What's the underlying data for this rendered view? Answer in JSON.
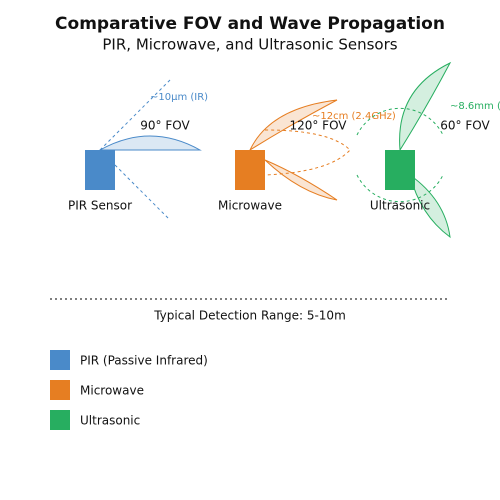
{
  "title": "Comparative FOV and Wave Propagation",
  "subtitle": "PIR, Microwave, and Ultrasonic Sensors",
  "sensors": [
    {
      "label": "PIR Sensor",
      "fov_label": "90° FOV",
      "wave_label": "~10μm (IR)",
      "color": "#4a8ac9"
    },
    {
      "label": "Microwave",
      "fov_label": "120° FOV",
      "wave_label": "~12cm (2.4GHz)",
      "color": "#e67e22"
    },
    {
      "label": "Ultrasonic",
      "fov_label": "60° FOV",
      "wave_label": "~8.6mm (",
      "color": "#27ae60"
    }
  ],
  "range_label": "Typical Detection Range: 5-10m",
  "legend": [
    {
      "label": "PIR (Passive Infrared)",
      "color": "#4a8ac9"
    },
    {
      "label": "Microwave",
      "color": "#e67e22"
    },
    {
      "label": "Ultrasonic",
      "color": "#27ae60"
    }
  ]
}
